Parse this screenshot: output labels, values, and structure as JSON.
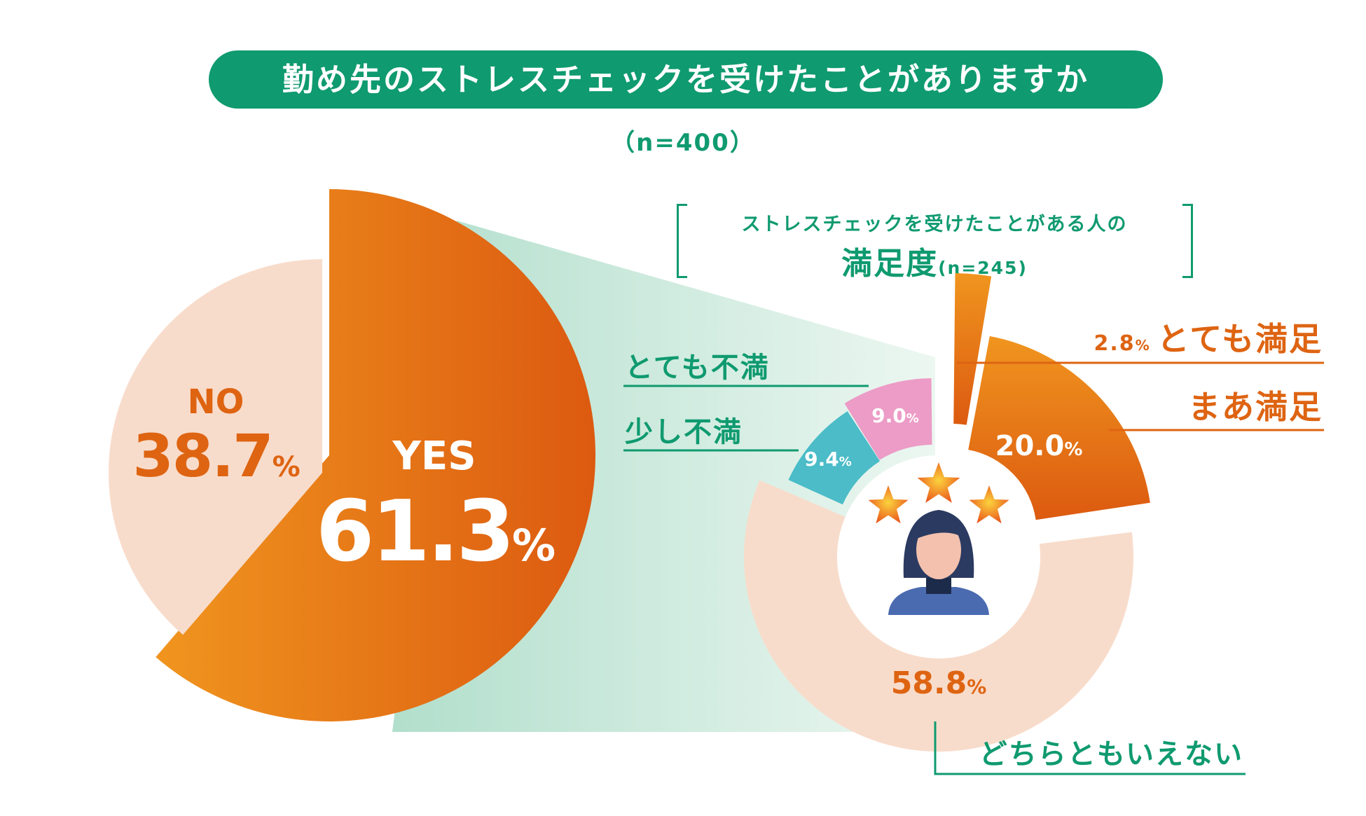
{
  "title": "勤め先のストレスチェックを受けたことがありますか",
  "title_n": "（n=400）",
  "subtitle_line1": "ストレスチェックを受けたことがある人の",
  "subtitle_line2": "満足度",
  "subtitle_n": "(n=245)",
  "colors": {
    "green": "#0f9a6f",
    "orange": "#de6412",
    "orange_light": "#f0951f",
    "peach": "#f8dccb",
    "teal": "#4bbcc8",
    "pink": "#ec9cc6",
    "band": "#c9e7da"
  },
  "chart_data": [
    {
      "type": "pie",
      "title": "勤め先のストレスチェックを受けたことがありますか",
      "n_label": "（n=400）",
      "slices": [
        {
          "label": "YES",
          "value": 61.3,
          "display": "61.3",
          "unit": "%"
        },
        {
          "label": "NO",
          "value": 38.7,
          "display": "38.7",
          "unit": "%"
        }
      ]
    },
    {
      "type": "pie",
      "variant": "donut",
      "title": "ストレスチェックを受けたことがある人の満足度",
      "n_label": "(n=245)",
      "slices": [
        {
          "label": "とても満足",
          "value": 2.8,
          "display": "2.8",
          "unit": "%"
        },
        {
          "label": "まあ満足",
          "value": 20.0,
          "display": "20.0",
          "unit": "%"
        },
        {
          "label": "どちらともいえない",
          "value": 58.8,
          "display": "58.8",
          "unit": "%"
        },
        {
          "label": "少し不満",
          "value": 9.4,
          "display": "9.4",
          "unit": "%"
        },
        {
          "label": "とても不満",
          "value": 9.0,
          "display": "9.0",
          "unit": "%"
        }
      ]
    }
  ]
}
